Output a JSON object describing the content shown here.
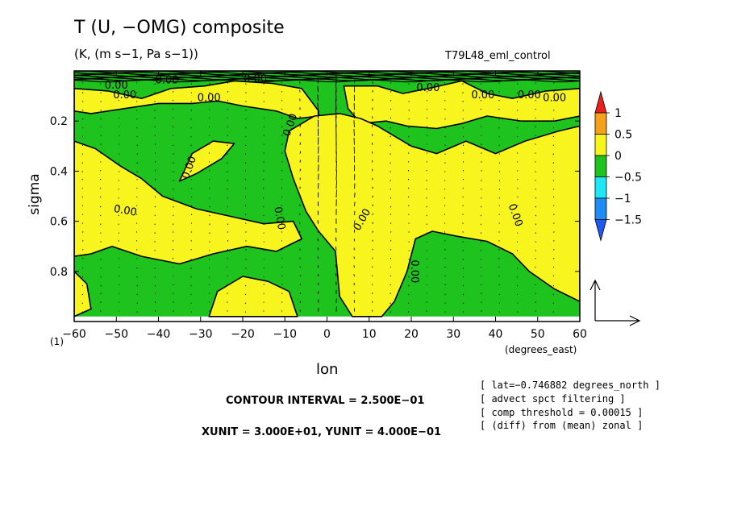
{
  "title": "T (U, −OMG) composite",
  "subtitle": "(K, (m s−1, Pa s−1))",
  "run_label": "T79L48_eml_control",
  "chart_data": {
    "type": "heatmap",
    "subtype": "filled contour with wind vectors",
    "xlabel": "lon",
    "xunits": "(degrees_east)",
    "ylabel": "sigma",
    "xlim": [
      -60,
      60
    ],
    "ylim": [
      1.0,
      0.0
    ],
    "x_ticks": [
      -60,
      -50,
      -40,
      -30,
      -20,
      -10,
      0,
      10,
      20,
      30,
      40,
      50,
      60
    ],
    "x_tick_labels": [
      "−60",
      "−50",
      "−40",
      "−30",
      "−20",
      "−10",
      "0",
      "10",
      "20",
      "30",
      "40",
      "50",
      "60"
    ],
    "y_ticks": [
      0.2,
      0.4,
      0.6,
      0.8
    ],
    "y_tick_labels": [
      "0.2",
      "0.4",
      "0.6",
      "0.8"
    ],
    "surface_level_label": "(1)",
    "contour_labels": [
      "0.00",
      "0.00",
      "0.00",
      "0.00",
      "0.00",
      "0.00",
      "0.00",
      "0.00",
      "0.00",
      "0.00",
      "0.00",
      "0.00",
      "0.00"
    ],
    "colorbar": {
      "levels": [
        -1.5,
        -1,
        -0.5,
        0,
        0.5,
        1
      ],
      "labels": [
        "1",
        "0.5",
        "0",
        "−0.5",
        "−1",
        "−1.5"
      ],
      "colors": [
        "#e8201e",
        "#f5a21a",
        "#f8f51e",
        "#1ec31e",
        "#1ee8f5",
        "#1e8cf5",
        "#1e5af0"
      ]
    },
    "contour_interval_text": "CONTOUR INTERVAL = 2.500E−01",
    "unit_text": "XUNIT = 3.000E+01, YUNIT = 4.000E−01",
    "notes": [
      "[ lat=−0.746882 degrees_north ]",
      "[ advect spct filtering ]",
      "[ comp threshold = 0.00015 ]",
      "[ (diff) from (mean) zonal ]"
    ],
    "regions": [
      {
        "value_class": "negative",
        "color": "#1ec31e",
        "polygon": [
          [
            -60,
            0.0
          ],
          [
            60,
            0.0
          ],
          [
            60,
            0.98
          ],
          [
            -60,
            0.98
          ]
        ]
      },
      {
        "value_class": "positive",
        "color": "#f8f51e",
        "polygon": [
          [
            -60,
            0.07
          ],
          [
            -52,
            0.08
          ],
          [
            -44,
            0.11
          ],
          [
            -37,
            0.07
          ],
          [
            -29,
            0.06
          ],
          [
            -22,
            0.04
          ],
          [
            -13,
            0.05
          ],
          [
            -6,
            0.07
          ],
          [
            -2,
            0.16
          ],
          [
            -2,
            0.18
          ],
          [
            -7,
            0.19
          ],
          [
            -12,
            0.16
          ],
          [
            -20,
            0.14
          ],
          [
            -26,
            0.12
          ],
          [
            -32,
            0.13
          ],
          [
            -40,
            0.13
          ],
          [
            -48,
            0.15
          ],
          [
            -56,
            0.17
          ],
          [
            -60,
            0.16
          ]
        ]
      },
      {
        "value_class": "positive",
        "color": "#f8f51e",
        "polygon": [
          [
            4,
            0.06
          ],
          [
            12,
            0.06
          ],
          [
            18,
            0.09
          ],
          [
            24,
            0.07
          ],
          [
            32,
            0.04
          ],
          [
            38,
            0.09
          ],
          [
            44,
            0.11
          ],
          [
            52,
            0.08
          ],
          [
            60,
            0.07
          ],
          [
            60,
            0.18
          ],
          [
            54,
            0.2
          ],
          [
            46,
            0.2
          ],
          [
            38,
            0.18
          ],
          [
            32,
            0.21
          ],
          [
            26,
            0.23
          ],
          [
            19,
            0.22
          ],
          [
            14,
            0.2
          ],
          [
            8,
            0.21
          ],
          [
            5,
            0.15
          ]
        ]
      },
      {
        "value_class": "positive",
        "color": "#f8f51e",
        "polygon": [
          [
            -60,
            0.28
          ],
          [
            -55,
            0.31
          ],
          [
            -49,
            0.38
          ],
          [
            -44,
            0.43
          ],
          [
            -39,
            0.5
          ],
          [
            -31,
            0.55
          ],
          [
            -23,
            0.58
          ],
          [
            -15,
            0.61
          ],
          [
            -8,
            0.6
          ],
          [
            -6,
            0.67
          ],
          [
            -12,
            0.72
          ],
          [
            -19,
            0.7
          ],
          [
            -27,
            0.73
          ],
          [
            -35,
            0.77
          ],
          [
            -44,
            0.74
          ],
          [
            -51,
            0.7
          ],
          [
            -56,
            0.73
          ],
          [
            -60,
            0.74
          ]
        ]
      },
      {
        "value_class": "positive",
        "color": "#f8f51e",
        "polygon": [
          [
            -9,
            0.24
          ],
          [
            -3,
            0.18
          ],
          [
            3,
            0.17
          ],
          [
            8,
            0.19
          ],
          [
            12,
            0.22
          ],
          [
            16,
            0.26
          ],
          [
            20,
            0.3
          ],
          [
            26,
            0.33
          ],
          [
            33,
            0.28
          ],
          [
            40,
            0.33
          ],
          [
            47,
            0.28
          ],
          [
            55,
            0.24
          ],
          [
            60,
            0.22
          ],
          [
            60,
            0.92
          ],
          [
            54,
            0.87
          ],
          [
            48,
            0.8
          ],
          [
            44,
            0.73
          ],
          [
            38,
            0.68
          ],
          [
            31,
            0.66
          ],
          [
            25,
            0.64
          ],
          [
            21,
            0.67
          ],
          [
            19,
            0.8
          ],
          [
            16,
            0.92
          ],
          [
            13,
            0.98
          ],
          [
            6,
            0.98
          ],
          [
            3,
            0.9
          ],
          [
            2,
            0.72
          ],
          [
            -2,
            0.64
          ],
          [
            -5,
            0.56
          ],
          [
            -8,
            0.43
          ],
          [
            -10,
            0.32
          ]
        ]
      },
      {
        "value_class": "positive",
        "color": "#f8f51e",
        "polygon": [
          [
            -35,
            0.44
          ],
          [
            -32,
            0.33
          ],
          [
            -27,
            0.28
          ],
          [
            -22,
            0.29
          ],
          [
            -25,
            0.35
          ],
          [
            -31,
            0.41
          ]
        ]
      },
      {
        "value_class": "positive",
        "color": "#f8f51e",
        "polygon": [
          [
            -28,
            0.98
          ],
          [
            -26,
            0.88
          ],
          [
            -20,
            0.82
          ],
          [
            -14,
            0.84
          ],
          [
            -9,
            0.88
          ],
          [
            -7,
            0.98
          ]
        ]
      },
      {
        "value_class": "positive",
        "color": "#f8f51e",
        "polygon": [
          [
            -60,
            0.8
          ],
          [
            -57,
            0.85
          ],
          [
            -56,
            0.95
          ],
          [
            -60,
            0.98
          ]
        ]
      }
    ]
  }
}
